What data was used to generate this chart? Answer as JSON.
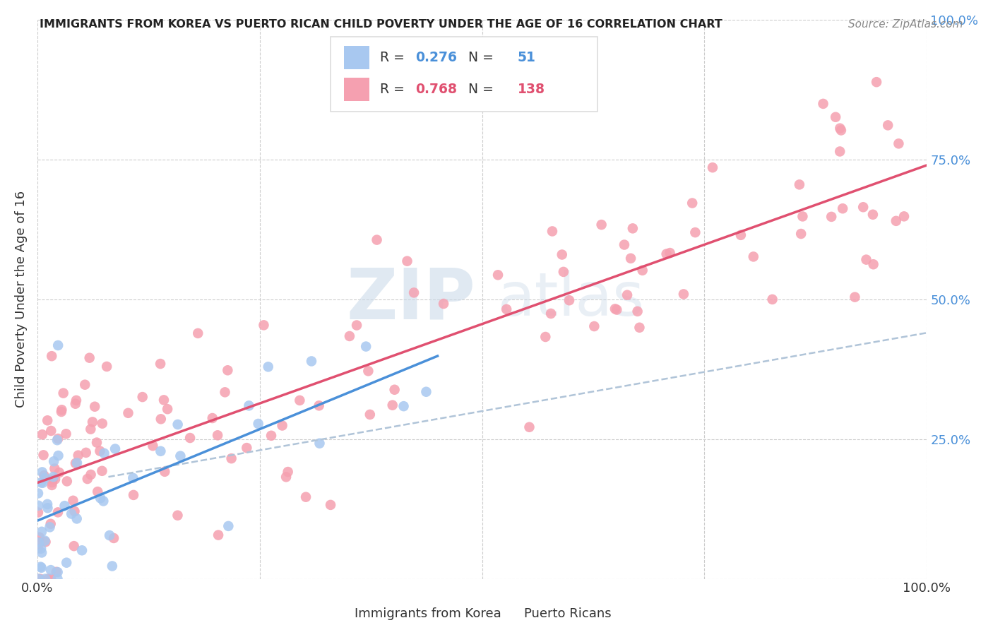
{
  "title": "IMMIGRANTS FROM KOREA VS PUERTO RICAN CHILD POVERTY UNDER THE AGE OF 16 CORRELATION CHART",
  "source": "Source: ZipAtlas.com",
  "ylabel": "Child Poverty Under the Age of 16",
  "legend_label1": "Immigrants from Korea",
  "legend_label2": "Puerto Ricans",
  "R1": "0.276",
  "N1": "51",
  "R2": "0.768",
  "N2": "138",
  "color_korea": "#a8c8f0",
  "color_korea_line": "#4a90d9",
  "color_pr": "#f5a0b0",
  "color_pr_line": "#e05070",
  "color_dashed": "#b0c4d8",
  "watermark_zip": "ZIP",
  "watermark_atlas": "atlas",
  "background_color": "#ffffff"
}
